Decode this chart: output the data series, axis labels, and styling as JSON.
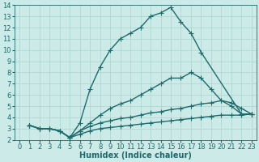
{
  "xlabel": "Humidex (Indice chaleur)",
  "bg_color": "#cceae7",
  "grid_color": "#aad4d0",
  "line_color": "#1e6b6b",
  "xlim": [
    -0.5,
    23.5
  ],
  "ylim": [
    2,
    14
  ],
  "xticks": [
    0,
    1,
    2,
    3,
    4,
    5,
    6,
    7,
    8,
    9,
    10,
    11,
    12,
    13,
    14,
    15,
    16,
    17,
    18,
    19,
    20,
    21,
    22,
    23
  ],
  "yticks": [
    2,
    3,
    4,
    5,
    6,
    7,
    8,
    9,
    10,
    11,
    12,
    13,
    14
  ],
  "lines": [
    {
      "x": [
        1,
        2,
        3,
        4,
        5,
        6,
        7,
        8,
        9,
        10,
        11,
        12,
        13,
        14,
        15,
        16,
        17,
        18,
        22,
        23
      ],
      "y": [
        3.3,
        3.0,
        3.0,
        2.8,
        2.2,
        3.5,
        6.5,
        8.5,
        10.0,
        11.0,
        11.5,
        12.0,
        13.0,
        13.3,
        13.8,
        12.5,
        11.5,
        9.8,
        4.3,
        4.3
      ]
    },
    {
      "x": [
        1,
        2,
        3,
        4,
        5,
        6,
        7,
        8,
        9,
        10,
        11,
        12,
        13,
        14,
        15,
        16,
        17,
        18,
        19,
        20,
        21,
        22,
        23
      ],
      "y": [
        3.3,
        3.0,
        3.0,
        2.8,
        2.2,
        2.8,
        3.5,
        4.2,
        4.8,
        5.2,
        5.5,
        6.0,
        6.5,
        7.0,
        7.5,
        7.5,
        8.0,
        7.5,
        6.5,
        5.5,
        5.0,
        4.3,
        4.3
      ]
    },
    {
      "x": [
        1,
        2,
        3,
        4,
        5,
        6,
        7,
        8,
        9,
        10,
        11,
        12,
        13,
        14,
        15,
        16,
        17,
        18,
        19,
        20,
        21,
        22,
        23
      ],
      "y": [
        3.3,
        3.0,
        3.0,
        2.8,
        2.2,
        2.8,
        3.2,
        3.5,
        3.7,
        3.9,
        4.0,
        4.2,
        4.4,
        4.5,
        4.7,
        4.8,
        5.0,
        5.2,
        5.3,
        5.5,
        5.3,
        4.8,
        4.3
      ]
    },
    {
      "x": [
        1,
        2,
        3,
        4,
        5,
        6,
        7,
        8,
        9,
        10,
        11,
        12,
        13,
        14,
        15,
        16,
        17,
        18,
        19,
        20,
        21,
        22,
        23
      ],
      "y": [
        3.3,
        3.0,
        3.0,
        2.8,
        2.2,
        2.5,
        2.8,
        3.0,
        3.1,
        3.2,
        3.3,
        3.4,
        3.5,
        3.6,
        3.7,
        3.8,
        3.9,
        4.0,
        4.1,
        4.2,
        4.2,
        4.2,
        4.3
      ]
    }
  ],
  "marker": "+",
  "markersize": 4,
  "linewidth": 1.0,
  "xlabel_fontsize": 7,
  "tick_fontsize": 6
}
